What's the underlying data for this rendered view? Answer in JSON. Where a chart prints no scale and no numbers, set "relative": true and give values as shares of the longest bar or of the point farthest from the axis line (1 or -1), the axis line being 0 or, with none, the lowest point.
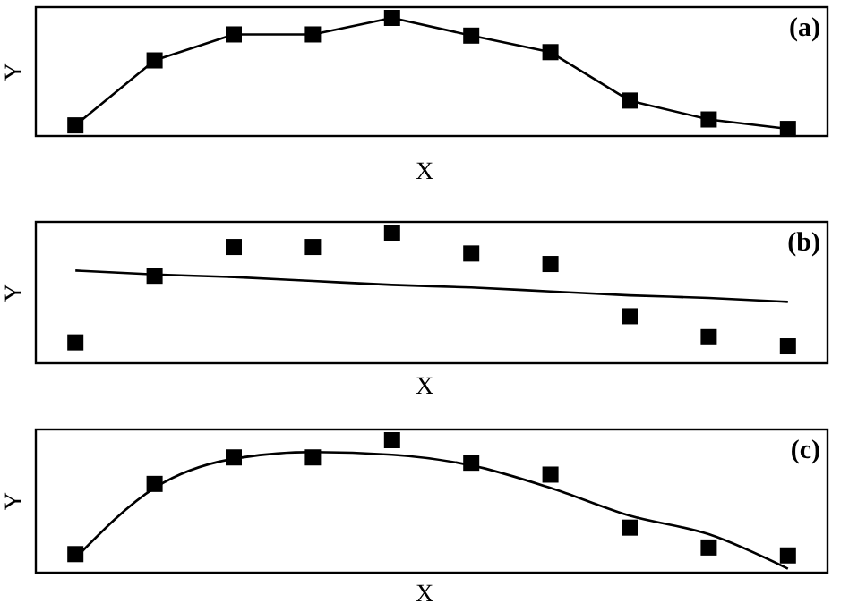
{
  "chart_data": [
    {
      "type": "line",
      "relative": true,
      "xlabel": "X",
      "ylabel": "Y",
      "annotations": [
        "(a)"
      ],
      "categories": [
        null,
        null,
        null,
        null,
        null,
        null,
        null,
        null,
        null,
        null
      ],
      "series": [
        {
          "marker": "square",
          "color": "#000000",
          "values": [
            0.09,
            0.64,
            0.86,
            0.86,
            1,
            0.85,
            0.71,
            0.3,
            0.14,
            0.06
          ]
        }
      ]
    },
    {
      "type": "scatter",
      "relative": true,
      "xlabel": "X",
      "ylabel": "Y",
      "annotations": [
        "(b)"
      ],
      "categories": [
        null,
        null,
        null,
        null,
        null,
        null,
        null,
        null,
        null,
        null
      ],
      "series": [
        {
          "marker": "square",
          "color": "#000000",
          "values": [
            0.16,
            0.67,
            0.89,
            0.89,
            1,
            0.84,
            0.76,
            0.36,
            0.2,
            0.13
          ]
        },
        {
          "type": "line",
          "marker": "none",
          "color": "#000000",
          "values": [
            0.71,
            0.68,
            0.66,
            0.63,
            0.6,
            0.58,
            0.55,
            0.52,
            0.5,
            0.47
          ]
        }
      ]
    },
    {
      "type": "scatter",
      "relative": true,
      "xlabel": "X",
      "ylabel": "Y",
      "annotations": [
        "(c)"
      ],
      "categories": [
        null,
        null,
        null,
        null,
        null,
        null,
        null,
        null,
        null,
        null
      ],
      "series": [
        {
          "marker": "square",
          "color": "#000000",
          "values": [
            0.14,
            0.67,
            0.87,
            0.87,
            1,
            0.83,
            0.74,
            0.34,
            0.19,
            0.13
          ]
        },
        {
          "type": "line",
          "marker": "none",
          "color": "#000000",
          "values": [
            0.11,
            0.64,
            0.86,
            0.91,
            0.89,
            0.81,
            0.64,
            0.43,
            0.29,
            0.03
          ]
        }
      ]
    }
  ]
}
